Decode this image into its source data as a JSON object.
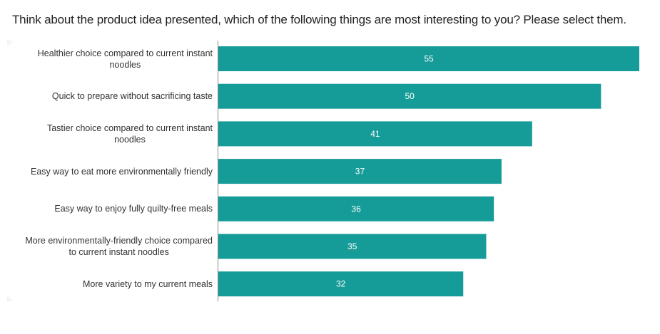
{
  "chart_data": {
    "type": "bar",
    "orientation": "horizontal",
    "title": "Think about the product idea presented, which of the following things are most interesting to you? Please select them.",
    "xlabel": "",
    "ylabel": "",
    "xlim": [
      0,
      55
    ],
    "grid": false,
    "legend": "none",
    "bar_color": "#169c98",
    "label_color": "#ffffff",
    "categories": [
      "Healthier choice compared to current instant noodles",
      "Quick to prepare without sacrificing taste",
      "Tastier choice compared to current instant noodles",
      "Easy way to eat more environmentally friendly",
      "Easy way to enjoy fully quilty-free meals",
      "More environmentally-friendly choice compared to current instant noodles",
      "More variety to my current meals"
    ],
    "category_lines": [
      [
        "Healthier choice compared to current instant",
        "noodles"
      ],
      [
        "Quick to prepare without sacrificing taste"
      ],
      [
        "Tastier choice compared to current instant",
        "noodles"
      ],
      [
        "Easy way to eat more environmentally friendly"
      ],
      [
        "Easy way to enjoy fully quilty-free meals"
      ],
      [
        "More environmentally-friendly choice compared",
        "to current instant noodles"
      ],
      [
        "More variety to my current meals"
      ]
    ],
    "values": [
      55,
      50,
      41,
      37,
      36,
      35,
      32
    ]
  }
}
